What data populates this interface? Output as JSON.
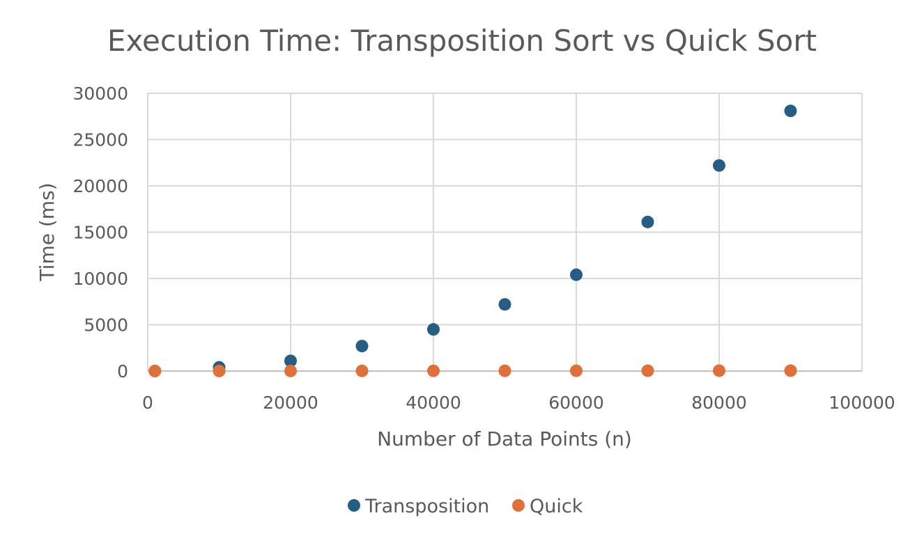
{
  "chart_data": {
    "type": "scatter",
    "title": "Execution Time: Transposition Sort vs Quick Sort",
    "xlabel": "Number of Data Points (n)",
    "ylabel": "Time (ms)",
    "xlim": [
      0,
      100000
    ],
    "ylim": [
      0,
      30000
    ],
    "x_ticks": [
      0,
      20000,
      40000,
      60000,
      80000,
      100000
    ],
    "y_ticks": [
      0,
      5000,
      10000,
      15000,
      20000,
      25000,
      30000
    ],
    "grid": true,
    "legend_position": "bottom",
    "series": [
      {
        "name": "Transposition",
        "color": "#255e85",
        "points": [
          {
            "x": 1000,
            "y": 5
          },
          {
            "x": 10000,
            "y": 400
          },
          {
            "x": 20000,
            "y": 1100
          },
          {
            "x": 30000,
            "y": 2700
          },
          {
            "x": 40000,
            "y": 4500
          },
          {
            "x": 50000,
            "y": 7200
          },
          {
            "x": 60000,
            "y": 10400
          },
          {
            "x": 70000,
            "y": 16100
          },
          {
            "x": 80000,
            "y": 22200
          },
          {
            "x": 90000,
            "y": 28100
          }
        ]
      },
      {
        "name": "Quick",
        "color": "#e0703a",
        "points": [
          {
            "x": 1000,
            "y": 1
          },
          {
            "x": 10000,
            "y": 5
          },
          {
            "x": 20000,
            "y": 10
          },
          {
            "x": 30000,
            "y": 15
          },
          {
            "x": 40000,
            "y": 20
          },
          {
            "x": 50000,
            "y": 25
          },
          {
            "x": 60000,
            "y": 30
          },
          {
            "x": 70000,
            "y": 35
          },
          {
            "x": 80000,
            "y": 40
          },
          {
            "x": 90000,
            "y": 45
          }
        ]
      }
    ]
  }
}
